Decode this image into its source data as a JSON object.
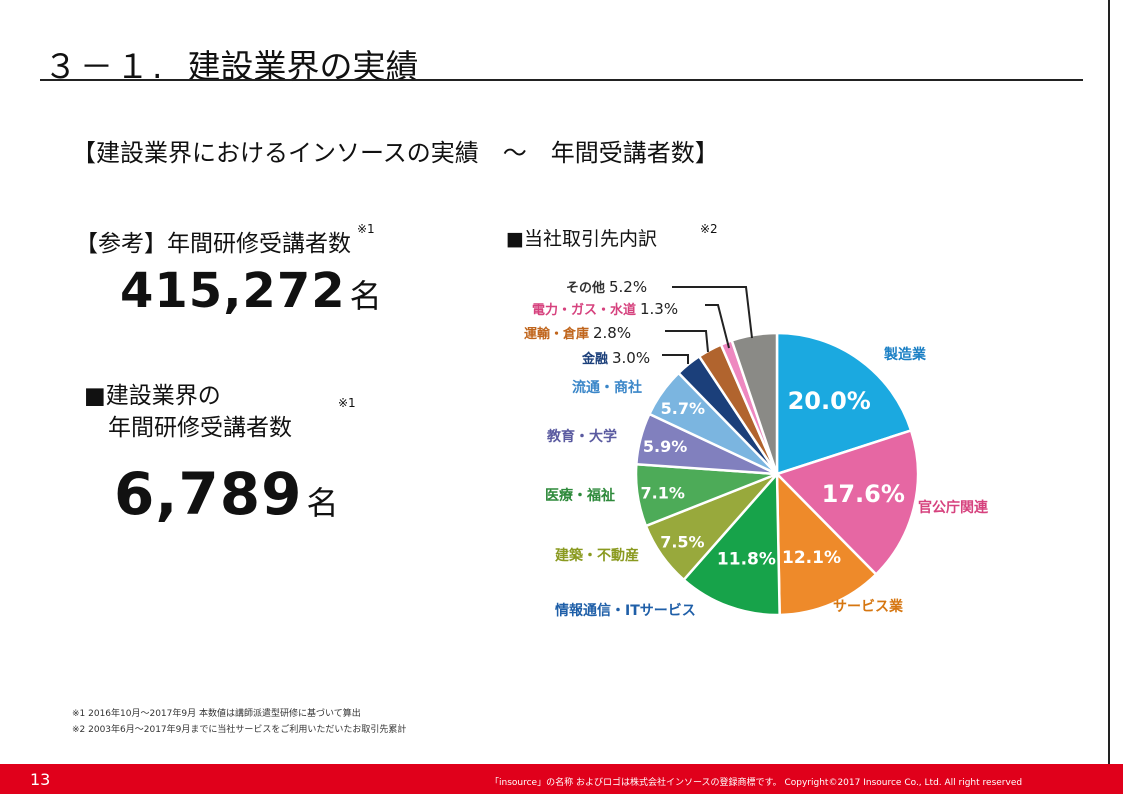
{
  "header": {
    "number": "３－１.",
    "title": "建設業界の実績"
  },
  "subtitle": "【建設業界におけるインソースの実績　～　年間受講者数】",
  "reference": {
    "label": "【参考】年間研修受講者数",
    "note": "※1",
    "value": "415,272",
    "unit": "名"
  },
  "construction": {
    "label_line1": "■建設業界の",
    "label_line2": "年間研修受講者数",
    "note": "※1",
    "value": "6,789",
    "unit": "名"
  },
  "chart_title": "■当社取引先内訳",
  "chart_note": "※2",
  "chart_data": {
    "type": "pie",
    "title": "■当社取引先内訳",
    "slices": [
      {
        "label": "製造業",
        "value": 20.0,
        "display": "20.0%",
        "color": "#1ba9e0"
      },
      {
        "label": "官公庁関連",
        "value": 17.6,
        "display": "17.6%",
        "color": "#e667a3"
      },
      {
        "label": "サービス業",
        "value": 12.1,
        "display": "12.1%",
        "color": "#ee8a2a"
      },
      {
        "label": "情報通信・ITサービス",
        "value": 11.8,
        "display": "11.8%",
        "color": "#17a34a"
      },
      {
        "label": "建築・不動産",
        "value": 7.5,
        "display": "7.5%",
        "color": "#98a93c"
      },
      {
        "label": "医療・福祉",
        "value": 7.1,
        "display": "7.1%",
        "color": "#4dab58"
      },
      {
        "label": "教育・大学",
        "value": 5.9,
        "display": "5.9%",
        "color": "#8180be"
      },
      {
        "label": "流通・商社",
        "value": 5.7,
        "display": "5.7%",
        "color": "#7bb5e0"
      },
      {
        "label": "金融",
        "value": 3.0,
        "display": "3.0%",
        "color": "#1b3f7a"
      },
      {
        "label": "運輸・倉庫",
        "value": 2.8,
        "display": "2.8%",
        "color": "#b1642e"
      },
      {
        "label": "電力・ガス・水道",
        "value": 1.3,
        "display": "1.3%",
        "color": "#ee88c0"
      },
      {
        "label": "その他",
        "value": 5.2,
        "display": "5.2%",
        "color": "#8a8a86"
      }
    ],
    "label_colors": {
      "製造業": "#1a7fc4",
      "官公庁関連": "#d6427e",
      "サービス業": "#d67610",
      "情報通信・ITサービス": "#1f5fa8",
      "建築・不動産": "#8a9a20",
      "医療・福祉": "#2f8a3c",
      "教育・大学": "#5a5aa0",
      "流通・商社": "#3a86c8",
      "金融": "#1b3f7a",
      "運輸・倉庫": "#c0651c",
      "電力・ガス・水道": "#d6427e",
      "その他": "#333333"
    }
  },
  "footnotes": [
    "※1 2016年10月～2017年9月 本数値は講師派遣型研修に基づいて算出",
    "※2 2003年6月～2017年9月までに当社サービスをご利用いただいたお取引先累計"
  ],
  "footer": {
    "page_number": "13",
    "copyright": "「insource」の名称 およびロゴは株式会社インソースの登録商標です。 Copyright©2017 Insource Co., Ltd. All right reserved"
  },
  "colors": {
    "footer_bg": "#e0001b"
  }
}
